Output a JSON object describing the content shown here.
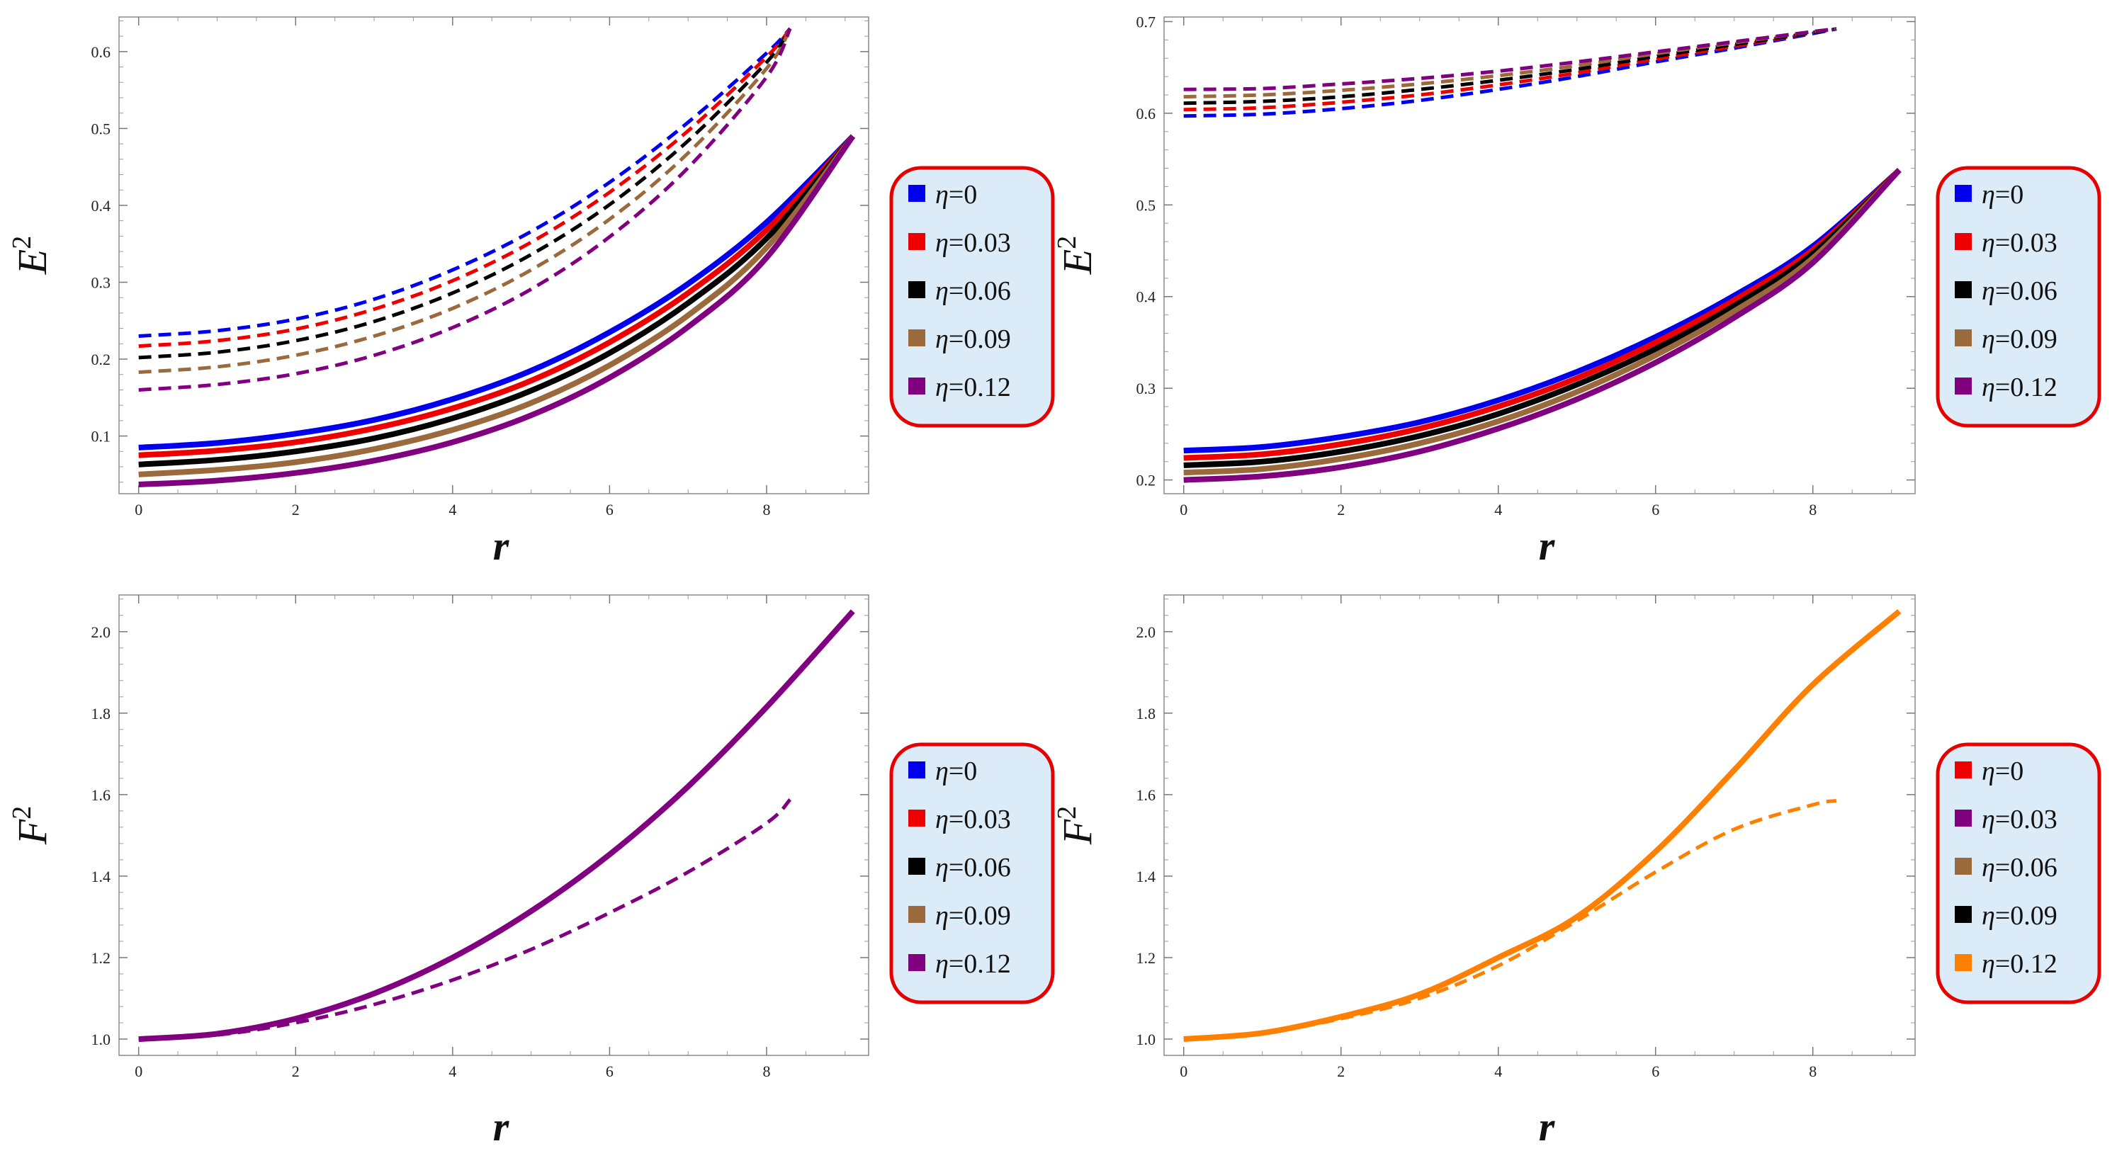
{
  "chart_data": [
    {
      "type": "line",
      "panel": "top-left",
      "xlabel": "r",
      "ylabel": "E",
      "ylabel_sup": "2",
      "xlim": [
        -0.25,
        9.3
      ],
      "ylim": [
        0.025,
        0.645
      ],
      "xticks": [
        0,
        2,
        4,
        6,
        8
      ],
      "yticks": [
        0.1,
        0.2,
        0.3,
        0.4,
        0.5,
        0.6
      ],
      "xtick_labels": [
        "0",
        "2",
        "4",
        "6",
        "8"
      ],
      "ytick_labels": [
        "0.1",
        "0.2",
        "0.3",
        "0.4",
        "0.5",
        "0.6"
      ],
      "grid": false,
      "legend": {
        "position": "right",
        "entries": [
          {
            "eta": "η",
            "value": "=0",
            "color": "#0000ee"
          },
          {
            "eta": "η",
            "value": "=0.03",
            "color": "#ee0000"
          },
          {
            "eta": "η",
            "value": "=0.06",
            "color": "#000000"
          },
          {
            "eta": "η",
            "value": "=0.09",
            "color": "#9a6a3c"
          },
          {
            "eta": "η",
            "value": "=0.12",
            "color": "#800080"
          }
        ]
      },
      "series": [
        {
          "name": "η=0 solid",
          "color": "#0000ee",
          "dash": false,
          "x": [
            0,
            1,
            2,
            3,
            4,
            5,
            6,
            7,
            8,
            9.1
          ],
          "y": [
            0.085,
            0.091,
            0.103,
            0.121,
            0.148,
            0.185,
            0.235,
            0.298,
            0.378,
            0.49
          ]
        },
        {
          "name": "η=0.03 solid",
          "color": "#ee0000",
          "dash": false,
          "x": [
            0,
            1,
            2,
            3,
            4,
            5,
            6,
            7,
            8,
            9.1
          ],
          "y": [
            0.075,
            0.081,
            0.092,
            0.11,
            0.136,
            0.172,
            0.222,
            0.286,
            0.368,
            0.49
          ]
        },
        {
          "name": "η=0.06 solid",
          "color": "#000000",
          "dash": false,
          "x": [
            0,
            1,
            2,
            3,
            4,
            5,
            6,
            7,
            8,
            9.1
          ],
          "y": [
            0.063,
            0.069,
            0.08,
            0.097,
            0.123,
            0.159,
            0.208,
            0.273,
            0.357,
            0.49
          ]
        },
        {
          "name": "η=0.09 solid",
          "color": "#9a6a3c",
          "dash": false,
          "x": [
            0,
            1,
            2,
            3,
            4,
            5,
            6,
            7,
            8,
            9.1
          ],
          "y": [
            0.05,
            0.056,
            0.066,
            0.083,
            0.108,
            0.143,
            0.192,
            0.257,
            0.345,
            0.49
          ]
        },
        {
          "name": "η=0.12 solid",
          "color": "#800080",
          "dash": false,
          "x": [
            0,
            1,
            2,
            3,
            4,
            5,
            6,
            7,
            8,
            9.1
          ],
          "y": [
            0.037,
            0.042,
            0.052,
            0.068,
            0.092,
            0.127,
            0.176,
            0.242,
            0.332,
            0.49
          ]
        },
        {
          "name": "η=0 dashed",
          "color": "#0000ee",
          "dash": true,
          "x": [
            0,
            1,
            2,
            3,
            4,
            5,
            6,
            7,
            8,
            8.3
          ],
          "y": [
            0.23,
            0.237,
            0.252,
            0.278,
            0.316,
            0.366,
            0.43,
            0.508,
            0.598,
            0.63
          ]
        },
        {
          "name": "η=0.03 dashed",
          "color": "#ee0000",
          "dash": true,
          "x": [
            0,
            1,
            2,
            3,
            4,
            5,
            6,
            7,
            8,
            8.3
          ],
          "y": [
            0.217,
            0.224,
            0.239,
            0.265,
            0.302,
            0.352,
            0.417,
            0.497,
            0.593,
            0.63
          ]
        },
        {
          "name": "η=0.06 dashed",
          "color": "#000000",
          "dash": true,
          "x": [
            0,
            1,
            2,
            3,
            4,
            5,
            6,
            7,
            8,
            8.3
          ],
          "y": [
            0.202,
            0.209,
            0.224,
            0.249,
            0.286,
            0.336,
            0.401,
            0.484,
            0.586,
            0.63
          ]
        },
        {
          "name": "η=0.09 dashed",
          "color": "#9a6a3c",
          "dash": true,
          "x": [
            0,
            1,
            2,
            3,
            4,
            5,
            6,
            7,
            8,
            8.3
          ],
          "y": [
            0.183,
            0.19,
            0.205,
            0.23,
            0.266,
            0.316,
            0.382,
            0.468,
            0.578,
            0.63
          ]
        },
        {
          "name": "η=0.12 dashed",
          "color": "#800080",
          "dash": true,
          "x": [
            0,
            1,
            2,
            3,
            4,
            5,
            6,
            7,
            8,
            8.3
          ],
          "y": [
            0.16,
            0.167,
            0.181,
            0.205,
            0.241,
            0.291,
            0.359,
            0.449,
            0.567,
            0.63
          ]
        }
      ]
    },
    {
      "type": "line",
      "panel": "top-right",
      "xlabel": "r",
      "ylabel": "E",
      "ylabel_sup": "2",
      "xlim": [
        -0.25,
        9.3
      ],
      "ylim": [
        0.185,
        0.705
      ],
      "xticks": [
        0,
        2,
        4,
        6,
        8
      ],
      "yticks": [
        0.2,
        0.3,
        0.4,
        0.5,
        0.6,
        0.7
      ],
      "xtick_labels": [
        "0",
        "2",
        "4",
        "6",
        "8"
      ],
      "ytick_labels": [
        "0.2",
        "0.3",
        "0.4",
        "0.5",
        "0.6",
        "0.7"
      ],
      "grid": false,
      "legend": {
        "position": "right",
        "entries": [
          {
            "eta": "η",
            "value": "=0",
            "color": "#0000ee"
          },
          {
            "eta": "η",
            "value": "=0.03",
            "color": "#ee0000"
          },
          {
            "eta": "η",
            "value": "=0.06",
            "color": "#000000"
          },
          {
            "eta": "η",
            "value": "=0.09",
            "color": "#9a6a3c"
          },
          {
            "eta": "η",
            "value": "=0.12",
            "color": "#800080"
          }
        ]
      },
      "series": [
        {
          "name": "η=0 solid",
          "color": "#0000ee",
          "dash": false,
          "x": [
            0,
            1,
            2,
            3,
            4,
            5,
            6,
            7,
            8,
            9.1
          ],
          "y": [
            0.232,
            0.236,
            0.247,
            0.263,
            0.287,
            0.318,
            0.356,
            0.401,
            0.455,
            0.538
          ]
        },
        {
          "name": "η=0.03 solid",
          "color": "#ee0000",
          "dash": false,
          "x": [
            0,
            1,
            2,
            3,
            4,
            5,
            6,
            7,
            8,
            9.1
          ],
          "y": [
            0.224,
            0.228,
            0.239,
            0.256,
            0.28,
            0.311,
            0.35,
            0.396,
            0.451,
            0.538
          ]
        },
        {
          "name": "η=0.06 solid",
          "color": "#000000",
          "dash": false,
          "x": [
            0,
            1,
            2,
            3,
            4,
            5,
            6,
            7,
            8,
            9.1
          ],
          "y": [
            0.216,
            0.22,
            0.231,
            0.248,
            0.272,
            0.304,
            0.343,
            0.39,
            0.447,
            0.538
          ]
        },
        {
          "name": "η=0.09 solid",
          "color": "#9a6a3c",
          "dash": false,
          "x": [
            0,
            1,
            2,
            3,
            4,
            5,
            6,
            7,
            8,
            9.1
          ],
          "y": [
            0.208,
            0.212,
            0.223,
            0.24,
            0.264,
            0.296,
            0.336,
            0.384,
            0.442,
            0.538
          ]
        },
        {
          "name": "η=0.12 solid",
          "color": "#800080",
          "dash": false,
          "x": [
            0,
            1,
            2,
            3,
            4,
            5,
            6,
            7,
            8,
            9.1
          ],
          "y": [
            0.2,
            0.204,
            0.214,
            0.231,
            0.256,
            0.288,
            0.328,
            0.377,
            0.437,
            0.538
          ]
        },
        {
          "name": "η=0 dashed",
          "color": "#0000ee",
          "dash": true,
          "x": [
            0,
            1,
            2,
            3,
            4,
            5,
            6,
            7,
            8,
            8.3
          ],
          "y": [
            0.597,
            0.599,
            0.605,
            0.614,
            0.626,
            0.64,
            0.656,
            0.671,
            0.687,
            0.692
          ]
        },
        {
          "name": "η=0.03 dashed",
          "color": "#ee0000",
          "dash": true,
          "x": [
            0,
            1,
            2,
            3,
            4,
            5,
            6,
            7,
            8,
            8.3
          ],
          "y": [
            0.604,
            0.606,
            0.612,
            0.62,
            0.631,
            0.644,
            0.659,
            0.673,
            0.688,
            0.692
          ]
        },
        {
          "name": "η=0.06 dashed",
          "color": "#000000",
          "dash": true,
          "x": [
            0,
            1,
            2,
            3,
            4,
            5,
            6,
            7,
            8,
            8.3
          ],
          "y": [
            0.611,
            0.613,
            0.618,
            0.626,
            0.636,
            0.648,
            0.662,
            0.675,
            0.688,
            0.692
          ]
        },
        {
          "name": "η=0.09 dashed",
          "color": "#9a6a3c",
          "dash": true,
          "x": [
            0,
            1,
            2,
            3,
            4,
            5,
            6,
            7,
            8,
            8.3
          ],
          "y": [
            0.618,
            0.62,
            0.625,
            0.632,
            0.641,
            0.652,
            0.665,
            0.677,
            0.689,
            0.692
          ]
        },
        {
          "name": "η=0.12 dashed",
          "color": "#800080",
          "dash": true,
          "x": [
            0,
            1,
            2,
            3,
            4,
            5,
            6,
            7,
            8,
            8.3
          ],
          "y": [
            0.626,
            0.627,
            0.632,
            0.638,
            0.646,
            0.656,
            0.667,
            0.678,
            0.689,
            0.692
          ]
        }
      ]
    },
    {
      "type": "line",
      "panel": "bottom-left",
      "xlabel": "r",
      "ylabel": "F",
      "ylabel_sup": "2",
      "xlim": [
        -0.25,
        9.3
      ],
      "ylim": [
        0.96,
        2.09
      ],
      "xticks": [
        0,
        2,
        4,
        6,
        8
      ],
      "yticks": [
        1.0,
        1.2,
        1.4,
        1.6,
        1.8,
        2.0
      ],
      "xtick_labels": [
        "0",
        "2",
        "4",
        "6",
        "8"
      ],
      "ytick_labels": [
        "1.0",
        "1.2",
        "1.4",
        "1.6",
        "1.8",
        "2.0"
      ],
      "grid": false,
      "legend": {
        "position": "right",
        "entries": [
          {
            "eta": "η",
            "value": "=0",
            "color": "#0000ee"
          },
          {
            "eta": "η",
            "value": "=0.03",
            "color": "#ee0000"
          },
          {
            "eta": "η",
            "value": "=0.06",
            "color": "#000000"
          },
          {
            "eta": "η",
            "value": "=0.09",
            "color": "#9a6a3c"
          },
          {
            "eta": "η",
            "value": "=0.12",
            "color": "#800080"
          }
        ]
      },
      "series": [
        {
          "name": "solid",
          "color": "#800080",
          "dash": false,
          "x": [
            0,
            1,
            2,
            3,
            4,
            5,
            6,
            7,
            8,
            9.1
          ],
          "y": [
            1.0,
            1.013,
            1.05,
            1.112,
            1.2,
            1.314,
            1.453,
            1.62,
            1.815,
            2.05
          ]
        },
        {
          "name": "dashed",
          "color": "#800080",
          "dash": true,
          "x": [
            0,
            1,
            2,
            3,
            4,
            5,
            6,
            7,
            8,
            8.3
          ],
          "y": [
            1.0,
            1.01,
            1.04,
            1.085,
            1.145,
            1.22,
            1.31,
            1.41,
            1.53,
            1.588
          ]
        }
      ]
    },
    {
      "type": "line",
      "panel": "bottom-right",
      "xlabel": "r",
      "ylabel": "F",
      "ylabel_sup": "2",
      "xlim": [
        -0.25,
        9.3
      ],
      "ylim": [
        0.96,
        2.09
      ],
      "xticks": [
        0,
        2,
        4,
        6,
        8
      ],
      "yticks": [
        1.0,
        1.2,
        1.4,
        1.6,
        1.8,
        2.0
      ],
      "xtick_labels": [
        "0",
        "2",
        "4",
        "6",
        "8"
      ],
      "ytick_labels": [
        "1.0",
        "1.2",
        "1.4",
        "1.6",
        "1.8",
        "2.0"
      ],
      "grid": false,
      "legend": {
        "position": "right",
        "entries": [
          {
            "eta": "η",
            "value": "=0",
            "color": "#ee0000"
          },
          {
            "eta": "η",
            "value": "=0.03",
            "color": "#800080"
          },
          {
            "eta": "η",
            "value": "=0.06",
            "color": "#9a6a3c"
          },
          {
            "eta": "η",
            "value": "=0.09",
            "color": "#000000"
          },
          {
            "eta": "η",
            "value": "=0.12",
            "color": "#ff8000"
          }
        ]
      },
      "series": [
        {
          "name": "solid",
          "color": "#ff8000",
          "dash": false,
          "x": [
            0,
            1,
            2,
            3,
            4,
            5,
            6,
            7,
            8,
            9.1
          ],
          "y": [
            1.0,
            1.015,
            1.055,
            1.11,
            1.2,
            1.3,
            1.46,
            1.66,
            1.87,
            2.05
          ]
        },
        {
          "name": "dashed",
          "color": "#ff8000",
          "dash": true,
          "x": [
            0,
            1,
            2,
            3,
            4,
            5,
            6,
            7,
            8,
            8.3
          ],
          "y": [
            1.0,
            1.015,
            1.05,
            1.1,
            1.18,
            1.29,
            1.41,
            1.515,
            1.575,
            1.585
          ]
        }
      ]
    }
  ]
}
